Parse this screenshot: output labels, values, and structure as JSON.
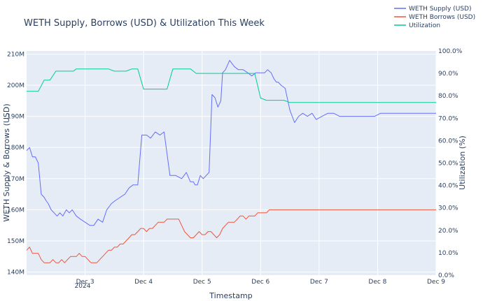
{
  "chart_data": {
    "type": "line",
    "title": "WETH Supply, Borrows (USD) & Utilization This Week",
    "xlabel": "Timestamp",
    "ylabel": "WETH Supply & Borrows (USD)",
    "y2label": "Utilization (%)",
    "x_ticks": [
      "Dec 3",
      "Dec 4",
      "Dec 5",
      "Dec 6",
      "Dec 7",
      "Dec 8",
      "Dec 9"
    ],
    "x_tick_sublabel": "2024",
    "y_ticks": [
      "140M",
      "150M",
      "160M",
      "170M",
      "180M",
      "190M",
      "200M",
      "210M"
    ],
    "y2_ticks": [
      "0.0%",
      "10.0%",
      "20.0%",
      "30.0%",
      "40.0%",
      "50.0%",
      "60.0%",
      "70.0%",
      "80.0%",
      "90.0%",
      "100.0%"
    ],
    "ylim": [
      139,
      211
    ],
    "y2lim": [
      0,
      100
    ],
    "xlim": [
      2.0,
      9.0
    ],
    "legend_position": "top-right",
    "grid": true,
    "plot_bg": "#e5ecf6",
    "series": [
      {
        "name": "WETH Supply (USD)",
        "axis": "left",
        "color": "#636efa",
        "x": [
          2.0,
          2.05,
          2.1,
          2.15,
          2.2,
          2.25,
          2.3,
          2.33,
          2.37,
          2.42,
          2.47,
          2.52,
          2.57,
          2.62,
          2.68,
          2.73,
          2.78,
          2.85,
          2.92,
          3.0,
          3.08,
          3.15,
          3.22,
          3.3,
          3.37,
          3.45,
          3.52,
          3.6,
          3.68,
          3.75,
          3.82,
          3.9,
          3.97,
          4.05,
          4.12,
          4.2,
          4.28,
          4.35,
          4.45,
          4.55,
          4.65,
          4.73,
          4.8,
          4.85,
          4.88,
          4.92,
          4.97,
          5.02,
          5.07,
          5.12,
          5.17,
          5.22,
          5.27,
          5.32,
          5.35,
          5.4,
          5.47,
          5.55,
          5.62,
          5.7,
          5.78,
          5.85,
          5.92,
          6.0,
          6.07,
          6.12,
          6.18,
          6.23,
          6.27,
          6.3,
          6.35,
          6.42,
          6.5,
          6.58,
          6.65,
          6.72,
          6.8,
          6.88,
          6.95,
          7.05,
          7.15,
          7.25,
          7.35,
          7.45,
          7.55,
          7.62,
          7.68,
          7.75,
          7.85,
          7.95,
          8.05,
          8.12,
          8.17,
          8.22,
          8.3,
          8.4,
          8.5,
          8.6,
          8.7,
          8.8,
          8.9,
          9.0
        ],
        "values": [
          179,
          180,
          177,
          177,
          175,
          165,
          164,
          163,
          162,
          160,
          159,
          158,
          159,
          158,
          160,
          159,
          160,
          158,
          157,
          156,
          155,
          155,
          157,
          156,
          160,
          162,
          163,
          164,
          165,
          167,
          168,
          168,
          184,
          184,
          183,
          185,
          184,
          185,
          171,
          171,
          170,
          172,
          169,
          169,
          168,
          168,
          171,
          170,
          171,
          172,
          197,
          196,
          193,
          195,
          204,
          205,
          208,
          206,
          205,
          205,
          204,
          203,
          204,
          204,
          204,
          205,
          204,
          202,
          201,
          201,
          200,
          199,
          192,
          188,
          190,
          191,
          190,
          191,
          189,
          190,
          191,
          191,
          190,
          190,
          190,
          190,
          190,
          190,
          190,
          190,
          191,
          191,
          191,
          191,
          191,
          191,
          191,
          191,
          191,
          191,
          191,
          191
        ],
        "note_type": "line"
      },
      {
        "name": "WETH Borrows (USD)",
        "axis": "left",
        "color": "#ef553b",
        "x": [
          2.0,
          2.05,
          2.1,
          2.15,
          2.2,
          2.25,
          2.3,
          2.35,
          2.4,
          2.45,
          2.5,
          2.55,
          2.6,
          2.65,
          2.7,
          2.75,
          2.8,
          2.85,
          2.9,
          2.95,
          3.0,
          3.05,
          3.1,
          3.15,
          3.2,
          3.25,
          3.3,
          3.35,
          3.4,
          3.45,
          3.5,
          3.55,
          3.6,
          3.65,
          3.7,
          3.75,
          3.8,
          3.85,
          3.9,
          3.95,
          4.0,
          4.05,
          4.1,
          4.15,
          4.2,
          4.25,
          4.3,
          4.35,
          4.4,
          4.45,
          4.5,
          4.55,
          4.6,
          4.65,
          4.7,
          4.75,
          4.8,
          4.85,
          4.9,
          4.95,
          5.0,
          5.05,
          5.1,
          5.15,
          5.2,
          5.25,
          5.3,
          5.35,
          5.4,
          5.45,
          5.5,
          5.55,
          5.6,
          5.65,
          5.7,
          5.75,
          5.8,
          5.85,
          5.9,
          5.95,
          6.0,
          6.05,
          6.1,
          6.15,
          6.2,
          6.25,
          6.3,
          6.35,
          6.4,
          6.45,
          6.5,
          6.55,
          6.6,
          6.65,
          6.7,
          6.75,
          6.8,
          6.85,
          6.9,
          6.95,
          7.0,
          7.05,
          7.1,
          7.15,
          7.2,
          7.25,
          7.3,
          7.35,
          7.4,
          7.45,
          7.5,
          7.55,
          7.6,
          7.65,
          7.7,
          7.75,
          7.8,
          7.85,
          7.9,
          7.95,
          8.0,
          8.05,
          8.1,
          8.15,
          8.2,
          8.25,
          8.3,
          8.35,
          8.4,
          8.45,
          8.5,
          8.55,
          8.6,
          8.65,
          8.7,
          8.75,
          8.8,
          8.85,
          8.9,
          8.95,
          9.0
        ],
        "values": [
          147,
          148,
          146,
          146,
          146,
          144,
          143,
          143,
          143,
          144,
          143,
          143,
          144,
          143,
          144,
          145,
          145,
          145,
          146,
          145,
          145,
          144,
          143,
          143,
          143,
          144,
          145,
          146,
          147,
          147,
          148,
          148,
          149,
          149,
          150,
          151,
          152,
          152,
          153,
          154,
          154,
          153,
          154,
          154,
          155,
          156,
          156,
          156,
          157,
          157,
          157,
          157,
          157,
          155,
          153,
          152,
          151,
          151,
          152,
          153,
          152,
          152,
          153,
          153,
          152,
          151,
          152,
          154,
          155,
          156,
          156,
          156,
          157,
          158,
          158,
          157,
          158,
          158,
          158,
          159,
          159,
          159,
          159,
          160,
          160,
          160,
          160,
          160,
          160,
          160,
          160,
          160,
          160,
          160,
          160,
          160,
          160,
          160,
          160,
          160,
          160,
          160,
          160,
          160,
          160,
          160,
          160,
          160,
          160,
          160,
          160,
          160,
          160,
          160,
          160,
          160,
          160,
          160,
          160,
          160,
          160,
          160,
          160,
          160,
          160,
          160,
          160,
          160,
          160,
          160,
          160,
          160,
          160,
          160,
          160,
          160,
          160,
          160,
          160,
          160,
          160
        ]
      },
      {
        "name": "Utilization",
        "axis": "right",
        "color": "#00cc96",
        "x": [
          2.0,
          2.1,
          2.2,
          2.3,
          2.35,
          2.4,
          2.5,
          2.6,
          2.7,
          2.8,
          2.85,
          2.9,
          3.0,
          3.05,
          3.1,
          3.2,
          3.3,
          3.4,
          3.5,
          3.6,
          3.7,
          3.8,
          3.9,
          4.0,
          4.1,
          4.2,
          4.3,
          4.4,
          4.5,
          4.6,
          4.7,
          4.75,
          4.8,
          4.9,
          5.0,
          5.1,
          5.2,
          5.3,
          5.4,
          5.5,
          5.6,
          5.7,
          5.8,
          5.9,
          6.0,
          6.1,
          6.2,
          6.3,
          6.4,
          6.5,
          6.6,
          6.7,
          6.8,
          6.9,
          7.0,
          7.1,
          7.2,
          7.3,
          7.4,
          7.5,
          7.6,
          7.7,
          7.8,
          7.9,
          8.0,
          8.1,
          8.2,
          8.3,
          8.4,
          8.5,
          8.6,
          8.7,
          8.8,
          8.9,
          9.0
        ],
        "values": [
          82,
          82,
          82,
          87,
          87,
          87,
          91,
          91,
          91,
          91,
          92,
          92,
          92,
          92,
          92,
          92,
          92,
          92,
          91,
          91,
          91,
          92,
          92,
          83,
          83,
          83,
          83,
          83,
          92,
          92,
          92,
          92,
          92,
          90,
          90,
          90,
          90,
          90,
          90,
          90,
          90,
          90,
          90,
          90,
          79,
          78,
          78,
          78,
          78,
          77,
          77,
          77,
          77,
          77,
          77,
          77,
          77,
          77,
          77,
          77,
          77,
          77,
          77,
          77,
          77,
          77,
          77,
          77,
          77,
          77,
          77,
          77,
          77,
          77,
          77
        ]
      }
    ]
  }
}
